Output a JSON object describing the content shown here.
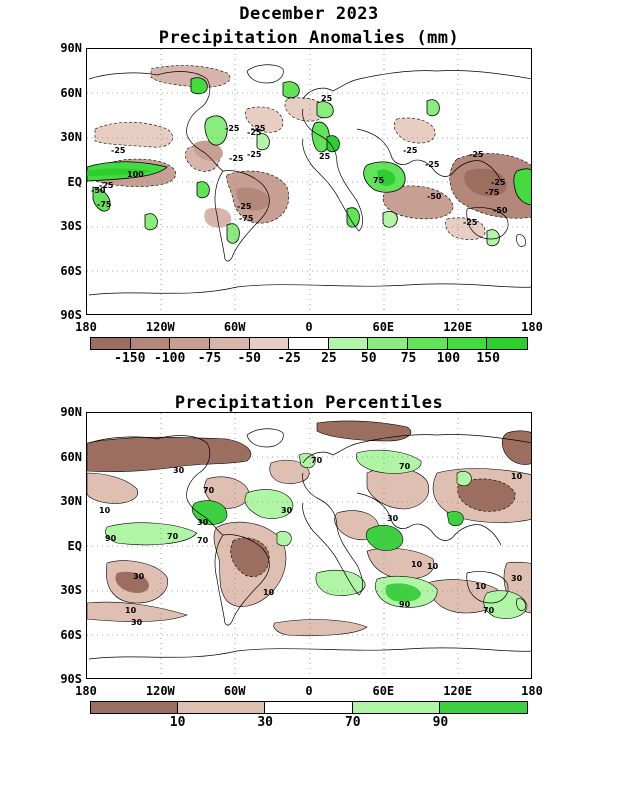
{
  "titles": {
    "main": "December 2023",
    "map1": "Precipitation Anomalies (mm)",
    "map2": "Precipitation Percentiles"
  },
  "axes": {
    "lat_labels": [
      "90N",
      "60N",
      "30N",
      "EQ",
      "30S",
      "60S",
      "90S"
    ],
    "lon_labels": [
      "180",
      "120W",
      "60W",
      "0",
      "60E",
      "120E",
      "180"
    ]
  },
  "anomaly_colorbar": {
    "colors": [
      "#9c6e5f",
      "#b3877a",
      "#c79f93",
      "#d8b5aa",
      "#e8cdc3",
      "#ffffff",
      "#b3f5a8",
      "#8aec7e",
      "#62e35a",
      "#45da42",
      "#2ccf2f"
    ],
    "labels": [
      "-150",
      "-100",
      "-75",
      "-50",
      "-25",
      "25",
      "50",
      "75",
      "100",
      "150"
    ]
  },
  "percentile_colorbar": {
    "colors": [
      "#9c6e5f",
      "#e0bfb3",
      "#ffffff",
      "#b0f4a5",
      "#3ed040"
    ],
    "labels": [
      "10",
      "30",
      "70",
      "90"
    ]
  },
  "anomaly_contour_labels": [
    "-25",
    "-25",
    "-25",
    "100",
    "-25",
    "-50",
    "-75",
    "-25",
    "-75",
    "-25",
    "-25",
    "25",
    "-25",
    "25",
    "-25",
    "75",
    "-25",
    "-50",
    "-25",
    "-75",
    "-25",
    "-50",
    "-25"
  ],
  "percentile_contour_labels": [
    "30",
    "10",
    "70",
    "90",
    "70",
    "30",
    "30",
    "10",
    "30",
    "70",
    "10",
    "70",
    "30",
    "30",
    "10",
    "90",
    "70",
    "10",
    "70",
    "30",
    "10",
    "10"
  ]
}
